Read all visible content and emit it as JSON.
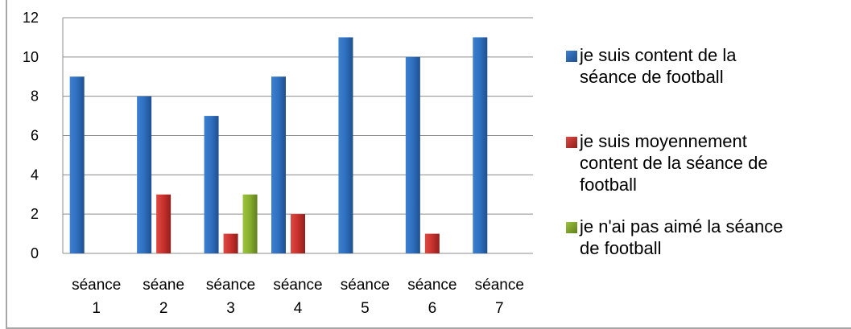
{
  "chart_data": {
    "type": "bar",
    "categories": [
      [
        "séance",
        "1"
      ],
      [
        "séane",
        "2"
      ],
      [
        "séance",
        "3"
      ],
      [
        "séance",
        "4"
      ],
      [
        "séance",
        "5"
      ],
      [
        "séance",
        "6"
      ],
      [
        "séance",
        "7"
      ]
    ],
    "series": [
      {
        "name": "je suis content de la séance de football",
        "color": "#2e6fbf",
        "values": [
          9,
          8,
          7,
          9,
          11,
          10,
          11
        ]
      },
      {
        "name": "je suis moyennement content de la séance de football",
        "color": "#c8302c",
        "values": [
          0,
          3,
          1,
          2,
          0,
          1,
          0
        ]
      },
      {
        "name": "je n'ai pas aimé la séance de football",
        "color": "#86ad2e",
        "values": [
          0,
          0,
          3,
          0,
          0,
          0,
          0
        ]
      }
    ],
    "ylim": [
      0,
      12
    ],
    "yticks": [
      0,
      2,
      4,
      6,
      8,
      10,
      12
    ],
    "grid": true,
    "legend": "right"
  },
  "legend": {
    "items": [
      {
        "line1": "je suis content de la",
        "line2": "séance de football",
        "line3": ""
      },
      {
        "line1": "je suis moyennement",
        "line2": "content de la séance de",
        "line3": "football"
      },
      {
        "line1": "je n'ai pas aimé la séance",
        "line2": "de football",
        "line3": ""
      }
    ]
  }
}
